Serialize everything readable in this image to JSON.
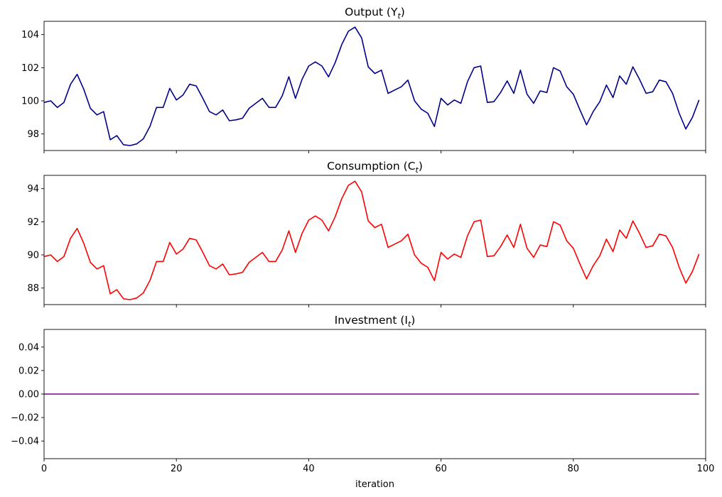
{
  "chart_data": [
    {
      "type": "line",
      "title": "Output (Y",
      "title_sub": "t",
      "title_close": ")",
      "xlim": [
        0,
        100
      ],
      "ylim": [
        97.0,
        104.8
      ],
      "xticks": [
        0,
        20,
        40,
        60,
        80,
        100
      ],
      "xtick_labels": [
        "",
        "",
        "",
        "",
        "",
        ""
      ],
      "yticks": [
        98,
        100,
        102,
        104
      ],
      "ytick_labels": [
        "98",
        "100",
        "102",
        "104"
      ],
      "grid": false,
      "series": [
        {
          "color": "#00008b",
          "x": [
            0,
            1,
            2,
            3,
            4,
            5,
            6,
            7,
            8,
            9,
            10,
            11,
            12,
            13,
            14,
            15,
            16,
            17,
            18,
            19,
            20,
            21,
            22,
            23,
            24,
            25,
            26,
            27,
            28,
            29,
            30,
            31,
            32,
            33,
            34,
            35,
            36,
            37,
            38,
            39,
            40,
            41,
            42,
            43,
            44,
            45,
            46,
            47,
            48,
            49,
            50,
            51,
            52,
            53,
            54,
            55,
            56,
            57,
            58,
            59,
            60,
            61,
            62,
            63,
            64,
            65,
            66,
            67,
            68,
            69,
            70,
            71,
            72,
            73,
            74,
            75,
            76,
            77,
            78,
            79,
            80,
            81,
            82,
            83,
            84,
            85,
            86,
            87,
            88,
            89,
            90,
            91,
            92,
            93,
            94,
            95,
            96,
            97,
            98,
            99
          ],
          "values": [
            99.9,
            100.0,
            99.6,
            99.9,
            101.0,
            101.6,
            100.7,
            99.55,
            99.15,
            99.35,
            97.65,
            97.9,
            97.35,
            97.3,
            97.4,
            97.7,
            98.45,
            99.6,
            99.6,
            100.75,
            100.05,
            100.35,
            101.0,
            100.9,
            100.15,
            99.35,
            99.15,
            99.45,
            98.8,
            98.85,
            98.95,
            99.55,
            99.85,
            100.15,
            99.6,
            99.6,
            100.3,
            101.45,
            100.15,
            101.3,
            102.1,
            102.35,
            102.1,
            101.45,
            102.3,
            103.4,
            104.2,
            104.45,
            103.8,
            102.05,
            101.65,
            101.85,
            100.45,
            100.65,
            100.85,
            101.25,
            100.0,
            99.5,
            99.25,
            98.45,
            100.15,
            99.75,
            100.05,
            99.85,
            101.15,
            102.0,
            102.1,
            99.9,
            99.95,
            100.5,
            101.2,
            100.45,
            101.85,
            100.4,
            99.85,
            100.6,
            100.5,
            102.0,
            101.8,
            100.85,
            100.4,
            99.45,
            98.55,
            99.35,
            99.95,
            100.95,
            100.2,
            101.5,
            101.0,
            102.05,
            101.3,
            100.45,
            100.55,
            101.25,
            101.15,
            100.45,
            99.25,
            98.3,
            99.0,
            100.05
          ]
        }
      ]
    },
    {
      "type": "line",
      "title": "Consumption (C",
      "title_sub": "t",
      "title_close": ")",
      "xlim": [
        0,
        100
      ],
      "ylim": [
        87.0,
        94.8
      ],
      "xticks": [
        0,
        20,
        40,
        60,
        80,
        100
      ],
      "xtick_labels": [
        "",
        "",
        "",
        "",
        "",
        ""
      ],
      "yticks": [
        88,
        90,
        92,
        94
      ],
      "ytick_labels": [
        "88",
        "90",
        "92",
        "94"
      ],
      "grid": false,
      "series": [
        {
          "color": "#ff0000",
          "x": [
            0,
            1,
            2,
            3,
            4,
            5,
            6,
            7,
            8,
            9,
            10,
            11,
            12,
            13,
            14,
            15,
            16,
            17,
            18,
            19,
            20,
            21,
            22,
            23,
            24,
            25,
            26,
            27,
            28,
            29,
            30,
            31,
            32,
            33,
            34,
            35,
            36,
            37,
            38,
            39,
            40,
            41,
            42,
            43,
            44,
            45,
            46,
            47,
            48,
            49,
            50,
            51,
            52,
            53,
            54,
            55,
            56,
            57,
            58,
            59,
            60,
            61,
            62,
            63,
            64,
            65,
            66,
            67,
            68,
            69,
            70,
            71,
            72,
            73,
            74,
            75,
            76,
            77,
            78,
            79,
            80,
            81,
            82,
            83,
            84,
            85,
            86,
            87,
            88,
            89,
            90,
            91,
            92,
            93,
            94,
            95,
            96,
            97,
            98,
            99
          ],
          "values": [
            89.9,
            90.0,
            89.6,
            89.9,
            91.0,
            91.6,
            90.7,
            89.55,
            89.15,
            89.35,
            87.65,
            87.9,
            87.35,
            87.3,
            87.4,
            87.7,
            88.45,
            89.6,
            89.6,
            90.75,
            90.05,
            90.35,
            91.0,
            90.9,
            90.15,
            89.35,
            89.15,
            89.45,
            88.8,
            88.85,
            88.95,
            89.55,
            89.85,
            90.15,
            89.6,
            89.6,
            90.3,
            91.45,
            90.15,
            91.3,
            92.1,
            92.35,
            92.1,
            91.45,
            92.3,
            93.4,
            94.2,
            94.45,
            93.8,
            92.05,
            91.65,
            91.85,
            90.45,
            90.65,
            90.85,
            91.25,
            90.0,
            89.5,
            89.25,
            88.45,
            90.15,
            89.75,
            90.05,
            89.85,
            91.15,
            92.0,
            92.1,
            89.9,
            89.95,
            90.5,
            91.2,
            90.45,
            91.85,
            90.4,
            89.85,
            90.6,
            90.5,
            92.0,
            91.8,
            90.85,
            90.4,
            89.45,
            88.55,
            89.35,
            89.95,
            90.95,
            90.2,
            91.5,
            91.0,
            92.05,
            91.3,
            90.45,
            90.55,
            91.25,
            91.15,
            90.45,
            89.25,
            88.3,
            89.0,
            90.05
          ]
        }
      ]
    },
    {
      "type": "line",
      "title": "Investment (I",
      "title_sub": "t",
      "title_close": ")",
      "xlim": [
        0,
        100
      ],
      "ylim": [
        -0.055,
        0.055
      ],
      "xticks": [
        0,
        20,
        40,
        60,
        80,
        100
      ],
      "xtick_labels": [
        "0",
        "20",
        "40",
        "60",
        "80",
        "100"
      ],
      "xlabel": "iteration",
      "yticks": [
        -0.04,
        -0.02,
        0.0,
        0.02,
        0.04
      ],
      "ytick_labels": [
        "−0.04",
        "−0.02",
        "0.00",
        "0.02",
        "0.04"
      ],
      "grid": false,
      "series": [
        {
          "color": "#800080",
          "x": [
            0,
            99
          ],
          "values": [
            0.0,
            0.0
          ]
        }
      ]
    }
  ]
}
